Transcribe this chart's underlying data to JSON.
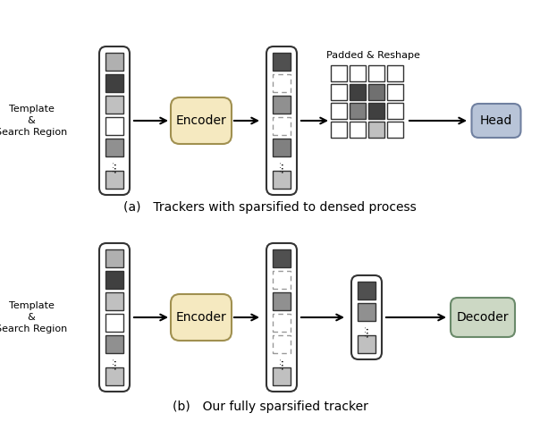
{
  "fig_width": 6.04,
  "fig_height": 5.0,
  "dpi": 100,
  "bg_color": "#ffffff",
  "caption_a": "(a) Trackers with sparsified to densed process",
  "caption_b": "(b) Our fully sparsified tracker",
  "encoder_color": "#f5e9c0",
  "encoder_edge": "#a09050",
  "head_color": "#b8c4d8",
  "head_edge": "#7080a0",
  "decoder_color": "#ccd8c4",
  "decoder_edge": "#6a8a6a",
  "input_colors": [
    "#b0b0b0",
    "#404040",
    "#c0c0c0",
    "#ffffff",
    "#909090"
  ],
  "input_last": "#c0c0c0",
  "enc_out_a_colors": [
    "#505050",
    "#ffffff",
    "#909090",
    "#ffffff",
    "#808080"
  ],
  "enc_out_a_dashed": [
    1,
    3
  ],
  "enc_out_a_last": "#c0c0c0",
  "enc_out_b_colors": [
    "#505050",
    "#ffffff",
    "#909090",
    "#ffffff",
    "#808080"
  ],
  "enc_out_b_dashed": [
    1,
    3,
    4
  ],
  "enc_out_b_last": "#c0c0c0",
  "sparse_b_colors": [
    "#505050",
    "#909090"
  ],
  "sparse_b_last": "#c0c0c0",
  "grid_colors": [
    [
      "#ffffff",
      "#ffffff",
      "#ffffff",
      "#ffffff"
    ],
    [
      "#ffffff",
      "#404040",
      "#707070",
      "#ffffff"
    ],
    [
      "#ffffff",
      "#808080",
      "#404040",
      "#ffffff"
    ],
    [
      "#ffffff",
      "#ffffff",
      "#c0c0c0",
      "#ffffff"
    ]
  ],
  "padded_label": "Padded & Reshape"
}
